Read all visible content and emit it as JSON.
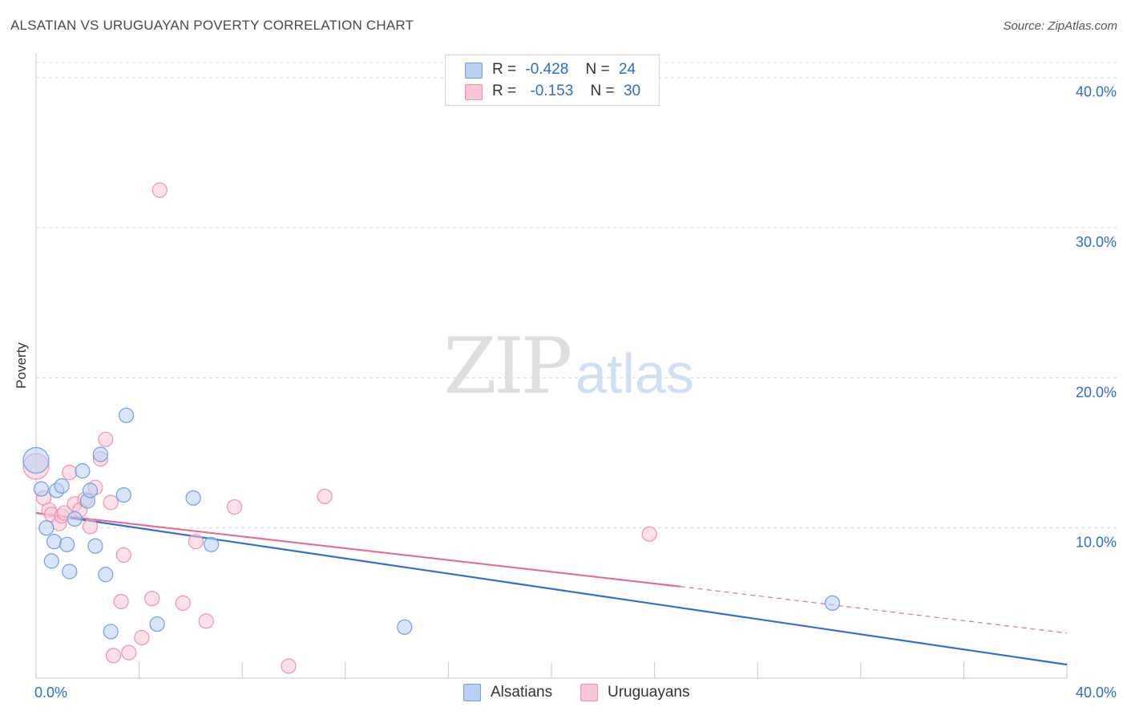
{
  "title": "ALSATIAN VS URUGUAYAN POVERTY CORRELATION CHART",
  "source": "Source: ZipAtlas.com",
  "watermark": {
    "zip": "ZIP",
    "atlas": "atlas"
  },
  "legend": {
    "series1": {
      "r_label": "R =",
      "r_value": "-0.428",
      "n_label": "N =",
      "n_value": "24"
    },
    "series2": {
      "r_label": "R =",
      "r_value": "-0.153",
      "n_label": "N =",
      "n_value": "30"
    }
  },
  "bottom_legend": {
    "series1": "Alsatians",
    "series2": "Uruguayans"
  },
  "colors": {
    "blue_fill": "#b8d0f2",
    "blue_stroke": "#6f9fe0",
    "blue_line": "#2e6fd6",
    "pink_fill": "#f8c6d3",
    "pink_stroke": "#ee93ad",
    "pink_line": "#e86a92",
    "axis_text": "#2e6bd2",
    "grid": "#d8d8d8"
  },
  "chart_data": {
    "type": "scatter",
    "title": "ALSATIAN VS URUGUAYAN POVERTY CORRELATION CHART",
    "xlabel": "",
    "ylabel": "Poverty",
    "xlim": [
      0,
      40
    ],
    "ylim": [
      0,
      41
    ],
    "x_tick_labels": [
      "0.0%",
      "40.0%"
    ],
    "y_ticks": [
      10,
      20,
      30,
      40
    ],
    "y_tick_labels": [
      "10.0%",
      "20.0%",
      "30.0%",
      "40.0%"
    ],
    "grid": true,
    "series": [
      {
        "name": "Alsatians",
        "points": [
          [
            0.0,
            14.5,
            16
          ],
          [
            0.2,
            12.6,
            9
          ],
          [
            0.4,
            10.0,
            9
          ],
          [
            0.6,
            7.8,
            9
          ],
          [
            0.7,
            9.1,
            9
          ],
          [
            0.8,
            12.5,
            9
          ],
          [
            1.0,
            12.8,
            9
          ],
          [
            1.2,
            8.9,
            9
          ],
          [
            1.3,
            7.1,
            9
          ],
          [
            1.5,
            10.6,
            9
          ],
          [
            1.8,
            13.8,
            9
          ],
          [
            2.0,
            11.8,
            9
          ],
          [
            2.1,
            12.5,
            9
          ],
          [
            2.3,
            8.8,
            9
          ],
          [
            2.5,
            14.9,
            9
          ],
          [
            2.7,
            6.9,
            9
          ],
          [
            2.9,
            3.1,
            9
          ],
          [
            3.4,
            12.2,
            9
          ],
          [
            3.5,
            17.5,
            9
          ],
          [
            4.7,
            3.6,
            9
          ],
          [
            6.1,
            12.0,
            9
          ],
          [
            6.8,
            8.9,
            9
          ],
          [
            14.3,
            3.4,
            9
          ],
          [
            30.9,
            5.0,
            9
          ]
        ],
        "trend": {
          "x": [
            0,
            40
          ],
          "y": [
            11.0,
            0.9
          ]
        }
      },
      {
        "name": "Uruguayans",
        "points": [
          [
            0.0,
            14.1,
            16
          ],
          [
            0.3,
            12.0,
            9
          ],
          [
            0.5,
            11.2,
            9
          ],
          [
            0.6,
            10.9,
            9
          ],
          [
            0.9,
            10.3,
            9
          ],
          [
            1.0,
            10.8,
            9
          ],
          [
            1.1,
            11.0,
            9
          ],
          [
            1.3,
            13.7,
            9
          ],
          [
            1.5,
            11.6,
            9
          ],
          [
            1.7,
            11.2,
            9
          ],
          [
            1.9,
            11.9,
            9
          ],
          [
            2.1,
            10.1,
            9
          ],
          [
            2.3,
            12.7,
            9
          ],
          [
            2.5,
            14.6,
            9
          ],
          [
            2.7,
            15.9,
            9
          ],
          [
            2.9,
            11.7,
            9
          ],
          [
            3.0,
            1.5,
            9
          ],
          [
            3.3,
            5.1,
            9
          ],
          [
            3.4,
            8.2,
            9
          ],
          [
            3.6,
            1.7,
            9
          ],
          [
            4.1,
            2.7,
            9
          ],
          [
            4.5,
            5.3,
            9
          ],
          [
            4.8,
            32.5,
            9
          ],
          [
            5.7,
            5.0,
            9
          ],
          [
            6.2,
            9.1,
            9
          ],
          [
            6.6,
            3.8,
            9
          ],
          [
            7.7,
            11.4,
            9
          ],
          [
            9.8,
            0.8,
            9
          ],
          [
            11.2,
            12.1,
            9
          ],
          [
            23.8,
            9.6,
            9
          ]
        ],
        "trend": {
          "x": [
            0,
            25
          ],
          "y": [
            11.0,
            6.1
          ]
        },
        "trend_extension": {
          "x": [
            25,
            40
          ],
          "y": [
            6.1,
            3.0
          ]
        }
      }
    ]
  }
}
